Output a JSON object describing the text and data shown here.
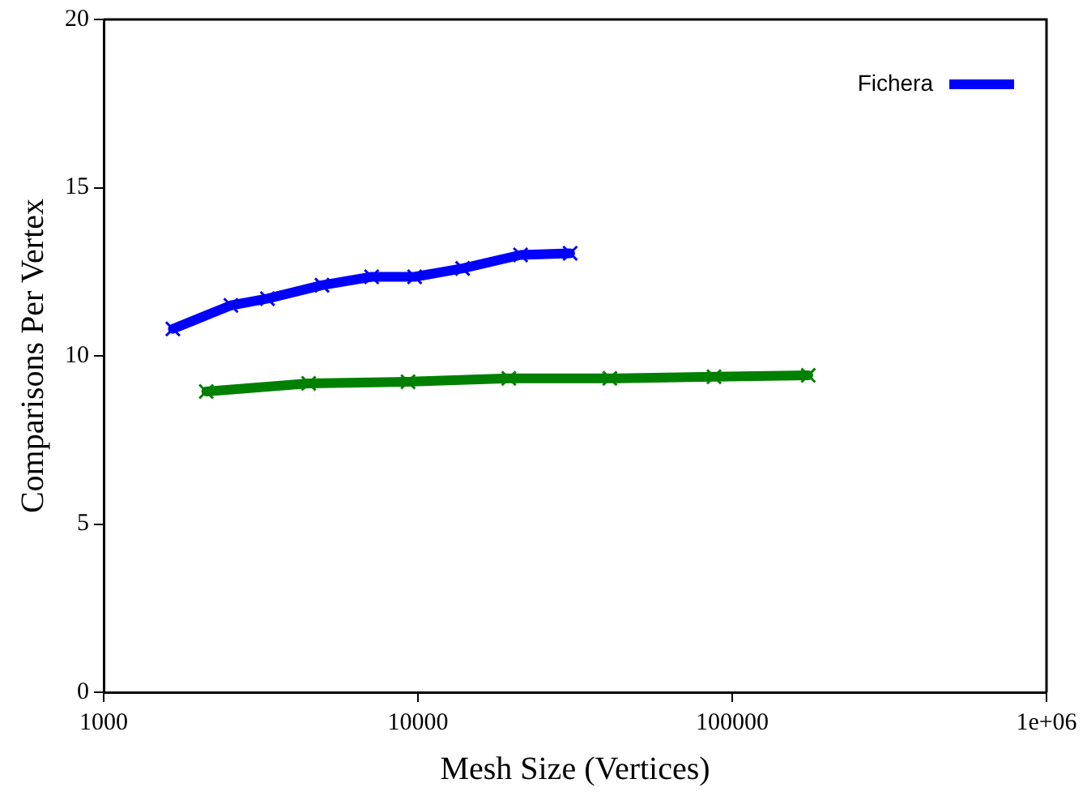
{
  "chart_data": {
    "type": "line",
    "xlabel": "Mesh Size (Vertices)",
    "ylabel": "Comparisons Per Vertex",
    "log": "x",
    "xlim": [
      1000,
      1000000
    ],
    "xticks": [
      1000,
      10000,
      100000,
      {
        "value": 1000000,
        "label": "1e+06"
      }
    ],
    "ylim": [
      0,
      20
    ],
    "yticks": [
      0,
      5,
      10,
      15,
      20
    ],
    "grid": false,
    "legend": "top right",
    "marker": "cross",
    "line_style": "solid",
    "series": [
      {
        "color": "#008000",
        "x": [
          2120,
          4490,
          9300,
          19460,
          40800,
          87500,
          174600
        ],
        "values": [
          8.94,
          9.18,
          9.23,
          9.33,
          9.33,
          9.38,
          9.42
        ]
      },
      {
        "name": "Fichera",
        "color": "#0000ff",
        "x": [
          1660,
          2540,
          3320,
          4950,
          7120,
          9760,
          13870,
          21200,
          30500
        ],
        "values": [
          10.8,
          11.5,
          11.7,
          12.1,
          12.35,
          12.35,
          12.6,
          13.0,
          13.05
        ]
      }
    ]
  }
}
